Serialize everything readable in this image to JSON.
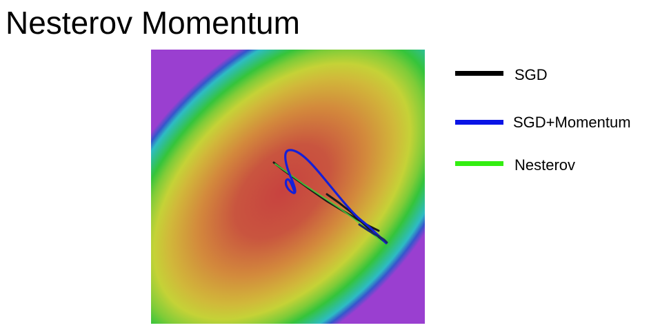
{
  "title": "Nesterov Momentum",
  "legend": {
    "items": [
      {
        "label": "SGD",
        "color": "#000000"
      },
      {
        "label": "SGD+Momentum",
        "color": "#0a14e6"
      },
      {
        "label": "Nesterov",
        "color": "#33ee11"
      }
    ]
  },
  "plot": {
    "background": "loss-surface-contour",
    "colors": {
      "center": "#c44140",
      "mid": "#d8b03a",
      "yellow": "#cdd337",
      "green": "#33c23a",
      "cyan": "#2ec0c0",
      "blue": "#3445c8",
      "purple": "#9b3ed0"
    }
  }
}
